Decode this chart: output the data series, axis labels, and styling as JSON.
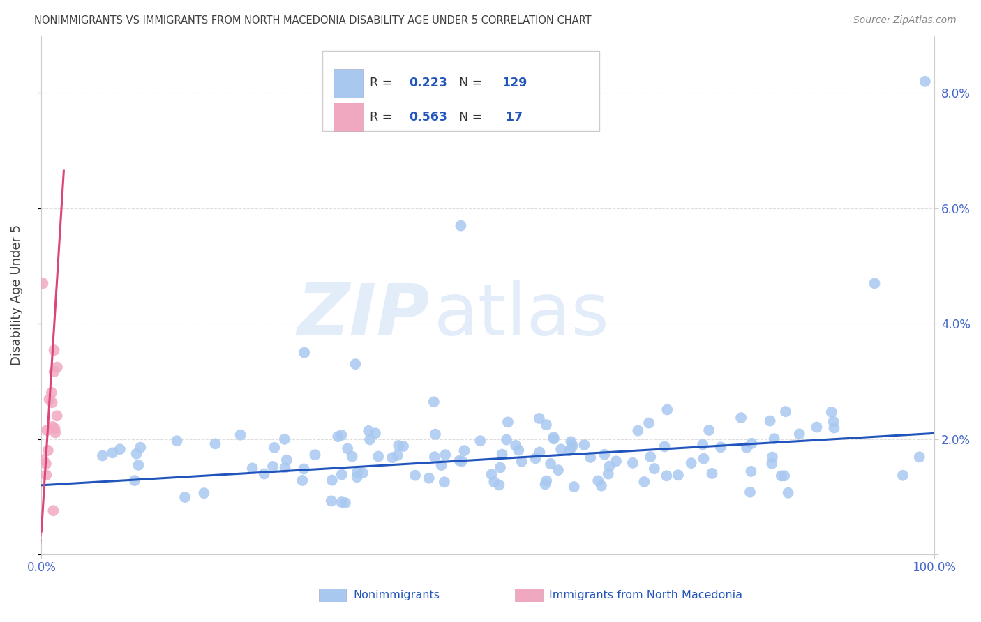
{
  "title": "NONIMMIGRANTS VS IMMIGRANTS FROM NORTH MACEDONIA DISABILITY AGE UNDER 5 CORRELATION CHART",
  "source": "Source: ZipAtlas.com",
  "ylabel": "Disability Age Under 5",
  "xlim": [
    0.0,
    1.0
  ],
  "ylim": [
    0.0,
    0.09
  ],
  "yticks": [
    0.0,
    0.02,
    0.04,
    0.06,
    0.08
  ],
  "ytick_labels": [
    "",
    "2.0%",
    "4.0%",
    "6.0%",
    "8.0%"
  ],
  "xticks": [
    0.0,
    1.0
  ],
  "xtick_labels": [
    "0.0%",
    "100.0%"
  ],
  "nonimm_R": 0.223,
  "nonimm_N": 129,
  "imm_R": 0.563,
  "imm_N": 17,
  "nonimm_color": "#a8c8f0",
  "nonimm_line_color": "#2255bb",
  "imm_color": "#f0a8c0",
  "imm_line_color": "#dd4477",
  "background_color": "#ffffff",
  "grid_color": "#dddddd",
  "title_color": "#404040",
  "axis_tick_color": "#4466cc",
  "source_color": "#888888",
  "legend_label_color": "#2255bb",
  "legend_text_color": "#333333"
}
